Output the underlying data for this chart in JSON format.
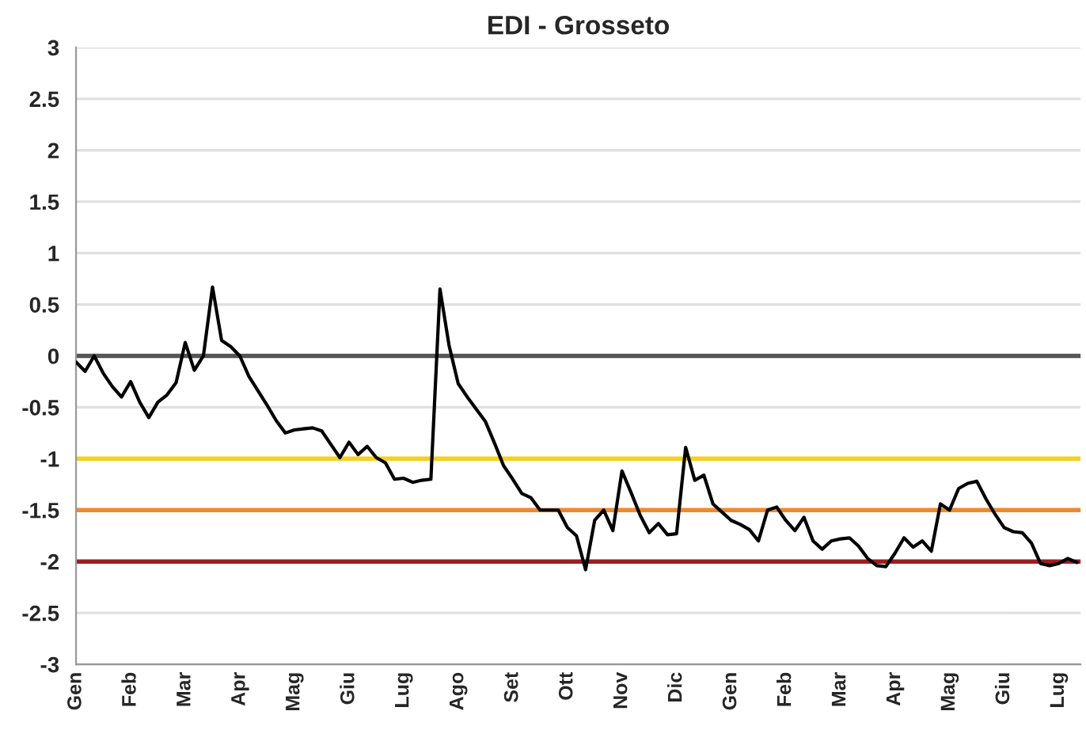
{
  "chart_data": {
    "type": "line",
    "title": "EDI - Grosseto",
    "categories": [
      "Gen",
      null,
      null,
      null,
      null,
      null,
      "Feb",
      null,
      null,
      null,
      null,
      null,
      "Mar",
      null,
      null,
      null,
      null,
      null,
      "Apr",
      null,
      null,
      null,
      null,
      null,
      "Mag",
      null,
      null,
      null,
      null,
      null,
      "Giu",
      null,
      null,
      null,
      null,
      null,
      "Lug",
      null,
      null,
      null,
      null,
      null,
      "Ago",
      null,
      null,
      null,
      null,
      null,
      "Set",
      null,
      null,
      null,
      null,
      null,
      "Ott",
      null,
      null,
      null,
      null,
      null,
      "Nov",
      null,
      null,
      null,
      null,
      null,
      "Dic",
      null,
      null,
      null,
      null,
      null,
      "Gen",
      null,
      null,
      null,
      null,
      null,
      "Feb",
      null,
      null,
      null,
      null,
      null,
      "Mar",
      null,
      null,
      null,
      null,
      null,
      "Apr",
      null,
      null,
      null,
      null,
      null,
      "Mag",
      null,
      null,
      null,
      null,
      null,
      "Giu",
      null,
      null,
      null,
      null,
      null,
      "Lug",
      null,
      null
    ],
    "series": [
      {
        "color": "#000000",
        "values": [
          -0.06,
          -0.15,
          0.0,
          -0.17,
          -0.3,
          -0.4,
          -0.25,
          -0.45,
          -0.6,
          -0.45,
          -0.38,
          -0.26,
          0.13,
          -0.14,
          0.0,
          0.67,
          0.15,
          0.09,
          0.0,
          -0.2,
          -0.34,
          -0.48,
          -0.63,
          -0.75,
          -0.72,
          -0.71,
          -0.7,
          -0.73,
          -0.86,
          -0.99,
          -0.84,
          -0.96,
          -0.88,
          -0.99,
          -1.04,
          -1.2,
          -1.19,
          -1.23,
          -1.21,
          -1.2,
          0.65,
          0.1,
          -0.27,
          -0.4,
          -0.52,
          -0.64,
          -0.85,
          -1.07,
          -1.2,
          -1.34,
          -1.38,
          -1.5,
          -1.5,
          -1.5,
          -1.67,
          -1.75,
          -2.08,
          -1.6,
          -1.5,
          -1.7,
          -1.12,
          -1.33,
          -1.55,
          -1.72,
          -1.63,
          -1.74,
          -1.73,
          -0.89,
          -1.21,
          -1.16,
          -1.44,
          -1.52,
          -1.6,
          -1.64,
          -1.69,
          -1.8,
          -1.5,
          -1.47,
          -1.6,
          -1.7,
          -1.57,
          -1.8,
          -1.88,
          -1.8,
          -1.78,
          -1.77,
          -1.85,
          -1.97,
          -2.04,
          -2.05,
          -1.92,
          -1.77,
          -1.86,
          -1.8,
          -1.9,
          -1.44,
          -1.5,
          -1.29,
          -1.24,
          -1.22,
          -1.39,
          -1.54,
          -1.67,
          -1.71,
          -1.72,
          -1.82,
          -2.02,
          -2.04,
          -2.02,
          -1.97,
          -2.01
        ]
      }
    ],
    "ylim": [
      -3,
      3
    ],
    "yticks": [
      {
        "value": -3,
        "label": "-3"
      },
      {
        "value": -2.5,
        "label": "-2.5"
      },
      {
        "value": -2,
        "label": "-2"
      },
      {
        "value": -1.5,
        "label": "-1.5"
      },
      {
        "value": -1,
        "label": "-1"
      },
      {
        "value": -0.5,
        "label": "-0.5"
      },
      {
        "value": 0,
        "label": "0"
      },
      {
        "value": 0.5,
        "label": "0.5"
      },
      {
        "value": 1,
        "label": "1"
      },
      {
        "value": 1.5,
        "label": "1.5"
      },
      {
        "value": 2,
        "label": "2"
      },
      {
        "value": 2.5,
        "label": "2.5"
      },
      {
        "value": 3,
        "label": "3"
      }
    ],
    "ref_lines": [
      {
        "axis": "y",
        "value": 0,
        "color": "#555555"
      },
      {
        "axis": "y",
        "value": -1,
        "color": "#f2d024"
      },
      {
        "axis": "y",
        "value": -1.5,
        "color": "#ee8a2e"
      },
      {
        "axis": "y",
        "value": -2,
        "color": "#9e1c22"
      }
    ],
    "grid": "y",
    "legend": false,
    "marker": "none",
    "line_style": "solid"
  }
}
